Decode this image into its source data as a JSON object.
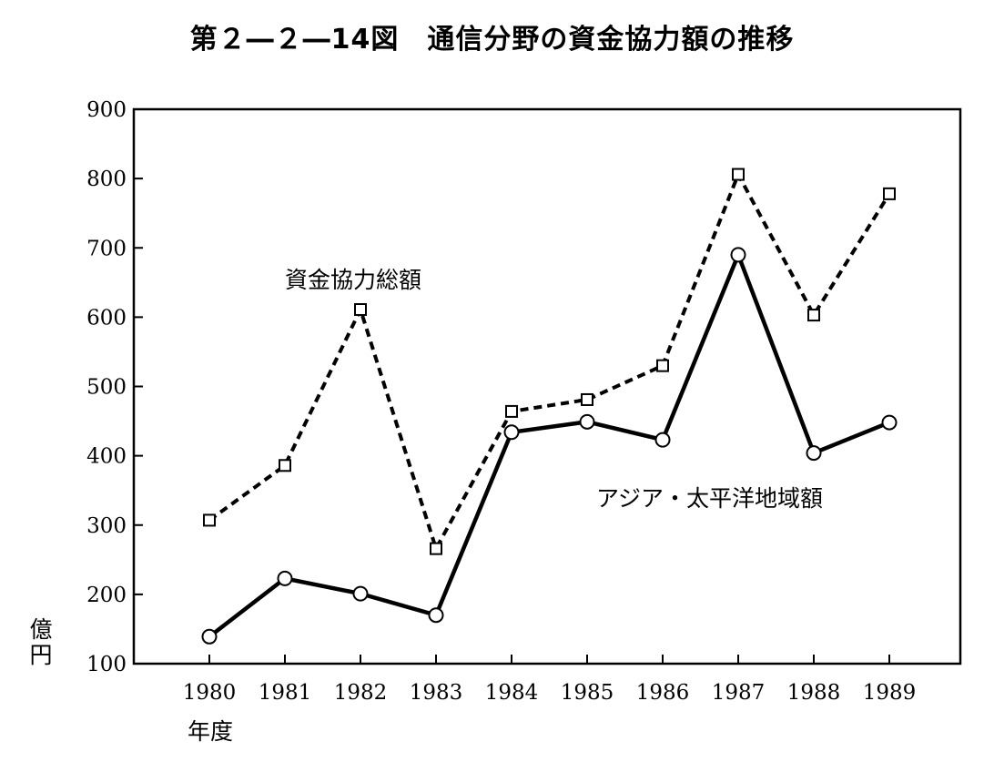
{
  "chart_data": {
    "type": "line",
    "title": "第２―２―14図　通信分野の資金協力額の推移",
    "xlabel": "年度",
    "ylabel": "億円",
    "x": [
      1980,
      1981,
      1982,
      1983,
      1984,
      1985,
      1986,
      1987,
      1988,
      1989
    ],
    "ylim": [
      100,
      900
    ],
    "yticks": [
      100,
      200,
      300,
      400,
      500,
      600,
      700,
      800,
      900
    ],
    "grid": false,
    "series": [
      {
        "name": "資金協力総額",
        "marker": "square",
        "line_style": "dashed",
        "values": [
          307,
          386,
          611,
          266,
          464,
          481,
          530,
          806,
          603,
          778
        ]
      },
      {
        "name": "アジア・太平洋地域額",
        "marker": "circle",
        "line_style": "solid",
        "values": [
          139,
          223,
          201,
          170,
          434,
          449,
          423,
          690,
          404,
          448
        ]
      }
    ]
  }
}
